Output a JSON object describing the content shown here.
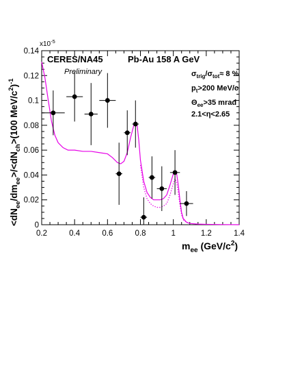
{
  "chart_data": {
    "type": "scatter",
    "experiment": "CERES/NA45",
    "system": "Pb-Au 158 A GeV",
    "preliminary": "Preliminary",
    "xlabel": {
      "main": "m",
      "sub": "ee",
      "unit": " (GeV/c",
      "sup": "2",
      "close": ")"
    },
    "ylabel": {
      "p1": "<dN",
      "s1": "ee",
      "p2": "/dm",
      "s2": "ee",
      "p3": ">/<dN",
      "s3": "ch",
      "p4": ">(100 MeV/c",
      "sup1": "2",
      "p5": ")",
      "sup2": "-1"
    },
    "y_multiplier": {
      "base": "x10",
      "exp": "-5"
    },
    "cuts": [
      {
        "id": "trig",
        "parts": [
          {
            "t": "σ"
          },
          {
            "t": "trig",
            "sub": 1
          },
          {
            "t": "/σ"
          },
          {
            "t": "tot",
            "sub": 1
          },
          {
            "t": "≈ 8 %"
          }
        ]
      },
      {
        "id": "pt",
        "parts": [
          {
            "t": "p"
          },
          {
            "t": "t",
            "sub": 1
          },
          {
            "t": ">200 MeV/c"
          }
        ]
      },
      {
        "id": "theta",
        "parts": [
          {
            "t": "Θ"
          },
          {
            "t": "ee",
            "sub": 1
          },
          {
            "t": ">35 mrad"
          }
        ]
      },
      {
        "id": "eta",
        "parts": [
          {
            "t": "2.1<η<2.65"
          }
        ]
      }
    ],
    "xlim": [
      0.2,
      1.4
    ],
    "ylim": [
      0,
      0.14
    ],
    "xticks": [
      0.2,
      0.4,
      0.6,
      0.8,
      1.0,
      1.2,
      1.4
    ],
    "xtick_labels": [
      "0.2",
      "0.4",
      "0.6",
      "0.8",
      "1",
      "1.2",
      "1.4"
    ],
    "yticks": [
      0,
      0.02,
      0.04,
      0.06,
      0.08,
      0.1,
      0.12,
      0.14
    ],
    "ytick_labels": [
      "0",
      "0.02",
      "0.04",
      "0.06",
      "0.08",
      "0.1",
      "0.12",
      "0.14"
    ],
    "data_points": [
      {
        "x": 0.27,
        "y": 0.09,
        "xerr": 0.07,
        "yerr": 0.018
      },
      {
        "x": 0.4,
        "y": 0.103,
        "xerr": 0.05,
        "yerr": 0.02
      },
      {
        "x": 0.5,
        "y": 0.089,
        "xerr": 0.04,
        "yerr": 0.025
      },
      {
        "x": 0.6,
        "y": 0.1,
        "xerr": 0.05,
        "yerr": 0.022
      },
      {
        "x": 0.67,
        "y": 0.041,
        "xerr": 0.02,
        "yerr": 0.025
      },
      {
        "x": 0.72,
        "y": 0.074,
        "xerr": 0.02,
        "yerr": 0.018
      },
      {
        "x": 0.77,
        "y": 0.081,
        "xerr": 0.02,
        "yerr": 0.019
      },
      {
        "x": 0.82,
        "y": 0.006,
        "xerr": 0.02,
        "yerr": 0.016
      },
      {
        "x": 0.87,
        "y": 0.038,
        "xerr": 0.02,
        "yerr": 0.017
      },
      {
        "x": 0.93,
        "y": 0.029,
        "xerr": 0.03,
        "yerr": 0.018
      },
      {
        "x": 1.01,
        "y": 0.042,
        "xerr": 0.03,
        "yerr": 0.018
      },
      {
        "x": 1.08,
        "y": 0.017,
        "xerr": 0.04,
        "yerr": 0.01
      }
    ],
    "curves": [
      {
        "style": "solid",
        "color": "#e600e6",
        "x": [
          0.2,
          0.22,
          0.24,
          0.26,
          0.28,
          0.3,
          0.33,
          0.36,
          0.4,
          0.45,
          0.5,
          0.55,
          0.6,
          0.63,
          0.66,
          0.68,
          0.7,
          0.72,
          0.74,
          0.76,
          0.77,
          0.78,
          0.79,
          0.8,
          0.82,
          0.84,
          0.86,
          0.88,
          0.9,
          0.92,
          0.94,
          0.96,
          0.98,
          1.0,
          1.01,
          1.02,
          1.03,
          1.04,
          1.05,
          1.06,
          1.08,
          1.1,
          1.15,
          1.2,
          1.3,
          1.4
        ],
        "y": [
          0.131,
          0.118,
          0.1,
          0.083,
          0.072,
          0.066,
          0.062,
          0.06,
          0.06,
          0.059,
          0.059,
          0.058,
          0.057,
          0.054,
          0.05,
          0.049,
          0.051,
          0.058,
          0.07,
          0.08,
          0.083,
          0.08,
          0.068,
          0.052,
          0.035,
          0.026,
          0.022,
          0.02,
          0.02,
          0.02,
          0.021,
          0.024,
          0.032,
          0.041,
          0.043,
          0.041,
          0.032,
          0.02,
          0.01,
          0.005,
          0.002,
          0.001,
          0.0005,
          0.0003,
          0.0001,
          0.0
        ]
      },
      {
        "style": "dotted",
        "color": "#e600e6",
        "x": [
          0.8,
          0.82,
          0.84,
          0.86,
          0.88,
          0.9,
          0.92,
          0.94,
          0.96,
          0.98,
          1.0,
          1.01,
          1.02,
          1.03,
          1.04,
          1.05,
          1.06,
          1.08,
          1.1
        ],
        "y": [
          0.048,
          0.03,
          0.021,
          0.017,
          0.015,
          0.014,
          0.014,
          0.015,
          0.017,
          0.024,
          0.033,
          0.037,
          0.034,
          0.026,
          0.016,
          0.008,
          0.004,
          0.002,
          0.001
        ]
      }
    ]
  }
}
